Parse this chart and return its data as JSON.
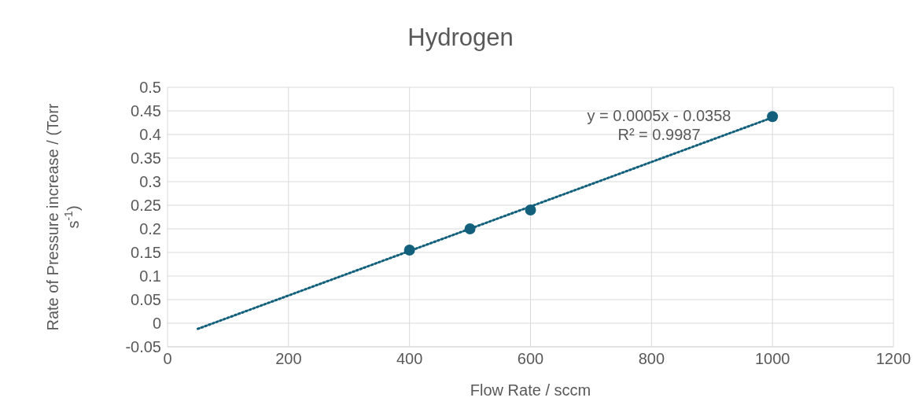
{
  "chart_data": {
    "type": "scatter",
    "title": "Hydrogen",
    "xlabel": "Flow Rate / sccm",
    "ylabel": "Rate of Pressure increase / (Torr s$^{-1}$)",
    "series": [
      {
        "color": "#13607c",
        "x": [
          400,
          500,
          600,
          1000
        ],
        "values": [
          0.155,
          0.2,
          0.24,
          0.438
        ],
        "marker": "circle"
      },
      {
        "type": "line",
        "color": "#13607c",
        "x": [
          50,
          1000
        ],
        "values": [
          -0.012,
          0.436
        ],
        "line_style": "dotted",
        "marker": "none"
      }
    ],
    "xlim": [
      0,
      1200
    ],
    "xticks": [
      0,
      200,
      400,
      600,
      800,
      1000,
      1200
    ],
    "ylim": [
      -0.05,
      0.5
    ],
    "yticks": [
      -0.05,
      0,
      0.05,
      0.1,
      0.15,
      0.2,
      0.25,
      0.3,
      0.35,
      0.4,
      0.45,
      0.5
    ],
    "grid": true,
    "annotations": [
      "y = 0.0005x - 0.0358",
      "R² = 0.9987"
    ]
  }
}
